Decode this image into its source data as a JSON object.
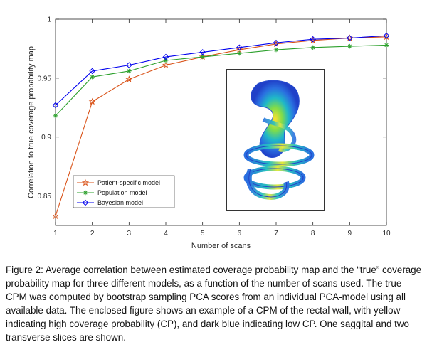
{
  "chart_data": {
    "type": "line",
    "title": "",
    "xlabel": "Number of scans",
    "ylabel": "Correlation to true coverage probability map",
    "x": [
      1,
      2,
      3,
      4,
      5,
      6,
      7,
      8,
      9,
      10
    ],
    "xlim": [
      1,
      10
    ],
    "ylim": [
      0.825,
      1.0
    ],
    "xticks": [
      "1",
      "2",
      "3",
      "4",
      "5",
      "6",
      "7",
      "8",
      "9",
      "10"
    ],
    "yticks": [
      {
        "value": 0.85,
        "label": "0.85"
      },
      {
        "value": 0.9,
        "label": "0.9"
      },
      {
        "value": 0.95,
        "label": "0.95"
      },
      {
        "value": 1.0,
        "label": "1"
      }
    ],
    "grid": false,
    "legend_position": "bottom-left",
    "series": [
      {
        "name": "Patient-specific model",
        "color": "#d95319",
        "marker": "star",
        "values": [
          0.833,
          0.93,
          0.949,
          0.961,
          0.968,
          0.974,
          0.979,
          0.982,
          0.984,
          0.985
        ]
      },
      {
        "name": "Population model",
        "color": "#2ca02c",
        "marker": "asterisk",
        "values": [
          0.918,
          0.951,
          0.956,
          0.965,
          0.968,
          0.971,
          0.974,
          0.976,
          0.977,
          0.978
        ]
      },
      {
        "name": "Bayesian model",
        "color": "#0000ee",
        "marker": "diamond",
        "values": [
          0.927,
          0.956,
          0.961,
          0.968,
          0.972,
          0.976,
          0.98,
          0.983,
          0.984,
          0.986
        ]
      }
    ],
    "inset": {
      "description_icon": "cpm-rectal-wall-image",
      "frame_color": "#000000"
    }
  },
  "caption": "Figure 2: Average correlation between estimated coverage probability map and the “true” coverage probability map for three different models, as a function of the number of scans used. The true CPM was computed by bootstrap sampling PCA scores from an individual PCA-model using all available data. The enclosed figure shows an example of a CPM of the rectal wall, with yellow indicating high coverage probability (CP), and dark blue indicating low CP. One saggital and two transverse slices are shown."
}
